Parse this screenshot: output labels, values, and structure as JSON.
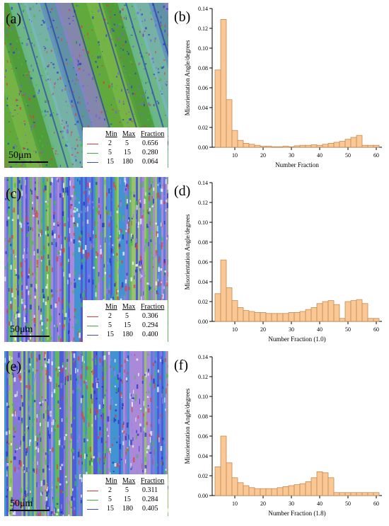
{
  "panels": [
    {
      "label": "(a)",
      "scale_bar": "50μm",
      "legend": {
        "headers": [
          "Min",
          "Max",
          "Fraction"
        ],
        "rows": [
          {
            "min": "2",
            "max": "5",
            "fraction": "0.656",
            "color": "#e03a3a"
          },
          {
            "min": "5",
            "max": "15",
            "fraction": "0.280",
            "color": "#3bb33b"
          },
          {
            "min": "15",
            "max": "180",
            "fraction": "0.064",
            "color": "#3a4fd6"
          }
        ]
      }
    },
    {
      "label": "(c)",
      "scale_bar": "50μm",
      "legend": {
        "headers": [
          "Min",
          "Max",
          "Fraction"
        ],
        "rows": [
          {
            "min": "2",
            "max": "5",
            "fraction": "0.306",
            "color": "#e03a3a"
          },
          {
            "min": "5",
            "max": "15",
            "fraction": "0.294",
            "color": "#3bb33b"
          },
          {
            "min": "15",
            "max": "180",
            "fraction": "0.400",
            "color": "#3a4fd6"
          }
        ]
      }
    },
    {
      "label": "(e)",
      "scale_bar": "50μm",
      "legend": {
        "headers": [
          "Min",
          "Max",
          "Fraction"
        ],
        "rows": [
          {
            "min": "2",
            "max": "5",
            "fraction": "0.311",
            "color": "#e03a3a"
          },
          {
            "min": "5",
            "max": "15",
            "fraction": "0.284",
            "color": "#3bb33b"
          },
          {
            "min": "15",
            "max": "180",
            "fraction": "0.405",
            "color": "#3a4fd6"
          }
        ]
      }
    }
  ],
  "chart_data": [
    {
      "label": "(b)",
      "type": "bar",
      "xlabel": "Number Fraction",
      "ylabel": "Misorientation Angle/degrees",
      "xlim": [
        2,
        62
      ],
      "ylim": [
        0,
        0.14
      ],
      "xticks": [
        10,
        20,
        30,
        40,
        50,
        60
      ],
      "yticks": [
        0.0,
        0.02,
        0.04,
        0.06,
        0.08,
        0.1,
        0.12,
        0.14
      ],
      "bar_width": 2,
      "x": [
        4,
        6,
        8,
        10,
        12,
        14,
        16,
        18,
        20,
        22,
        24,
        26,
        28,
        30,
        32,
        34,
        36,
        38,
        40,
        42,
        44,
        46,
        48,
        50,
        52,
        54,
        56,
        58,
        60
      ],
      "values": [
        0.078,
        0.129,
        0.048,
        0.017,
        0.007,
        0.004,
        0.003,
        0.002,
        0.001,
        0.001,
        0.0005,
        0.0005,
        0.001,
        0.0005,
        0.0015,
        0.002,
        0.002,
        0.0025,
        0.002,
        0.003,
        0.004,
        0.005,
        0.006,
        0.008,
        0.01,
        0.012,
        0.002,
        0.002,
        0.002
      ],
      "bar_color": "#f9c896",
      "edge_color": "#c98a4e"
    },
    {
      "label": "(d)",
      "type": "bar",
      "xlabel": "Number Fraction (1.0)",
      "ylabel": "Misorientation Angle/degrees",
      "xlim": [
        2,
        62
      ],
      "ylim": [
        0,
        0.14
      ],
      "xticks": [
        10,
        20,
        30,
        40,
        50,
        60
      ],
      "yticks": [
        0.0,
        0.02,
        0.04,
        0.06,
        0.08,
        0.1,
        0.12,
        0.14
      ],
      "bar_width": 2,
      "x": [
        4,
        6,
        8,
        10,
        12,
        14,
        16,
        18,
        20,
        22,
        24,
        26,
        28,
        30,
        32,
        34,
        36,
        38,
        40,
        42,
        44,
        46,
        48,
        50,
        52,
        54,
        56,
        58,
        60
      ],
      "values": [
        0.028,
        0.062,
        0.034,
        0.021,
        0.014,
        0.011,
        0.01,
        0.009,
        0.009,
        0.008,
        0.008,
        0.008,
        0.008,
        0.009,
        0.009,
        0.01,
        0.012,
        0.014,
        0.018,
        0.02,
        0.021,
        0.017,
        0.003,
        0.02,
        0.021,
        0.022,
        0.018,
        0.003,
        0.003
      ],
      "bar_color": "#f9c896",
      "edge_color": "#c98a4e"
    },
    {
      "label": "(f)",
      "type": "bar",
      "xlabel": "Number Fraction (1.8)",
      "ylabel": "Misorientation Angle/degrees",
      "xlim": [
        2,
        62
      ],
      "ylim": [
        0,
        0.14
      ],
      "xticks": [
        10,
        20,
        30,
        40,
        50,
        60
      ],
      "yticks": [
        0.0,
        0.02,
        0.04,
        0.06,
        0.08,
        0.1,
        0.12,
        0.14
      ],
      "bar_width": 2,
      "x": [
        4,
        6,
        8,
        10,
        12,
        14,
        16,
        18,
        20,
        22,
        24,
        26,
        28,
        30,
        32,
        34,
        36,
        38,
        40,
        42,
        44,
        46,
        48,
        50,
        52,
        54,
        56,
        58,
        60
      ],
      "values": [
        0.029,
        0.06,
        0.033,
        0.018,
        0.013,
        0.01,
        0.008,
        0.007,
        0.007,
        0.007,
        0.007,
        0.008,
        0.009,
        0.01,
        0.011,
        0.012,
        0.014,
        0.018,
        0.024,
        0.023,
        0.018,
        0.003,
        0.003,
        0.003,
        0.003,
        0.003,
        0.003,
        0.003,
        0.003
      ],
      "bar_color": "#f9c896",
      "edge_color": "#c98a4e"
    }
  ]
}
